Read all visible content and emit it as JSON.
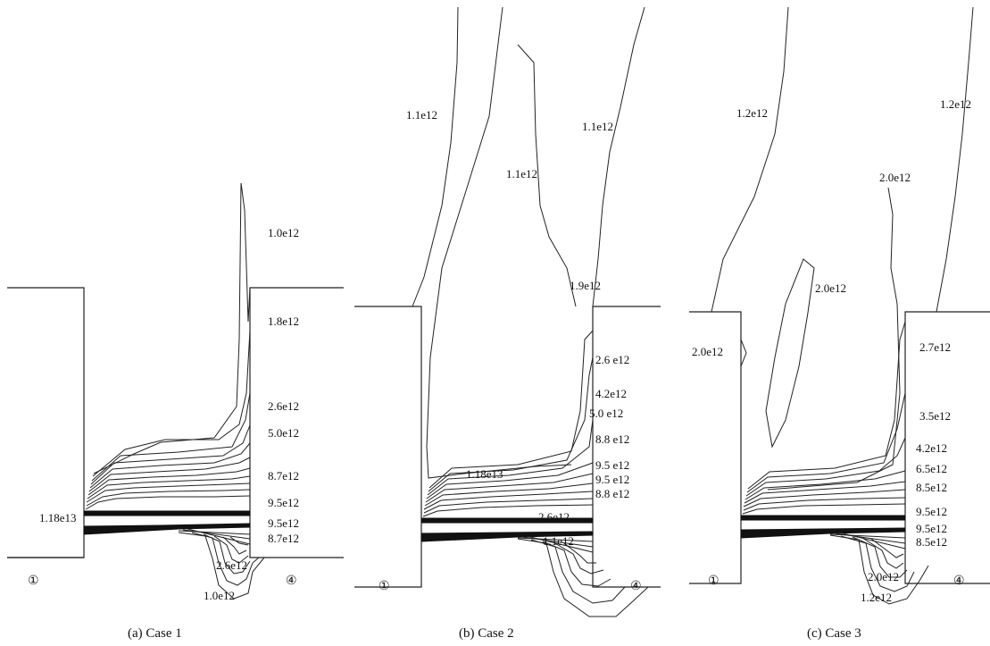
{
  "panels": [
    {
      "caption": "(a) Case 1",
      "marker_left": "①",
      "marker_right": "④",
      "labels": [
        "1.0e12",
        "1.8e12",
        "2.6e12",
        "5.0e12",
        "8.7e12",
        "9.5e12",
        "1.18e13",
        "9.5e12",
        "8.7e12",
        "2.6e12",
        "1.0e12"
      ]
    },
    {
      "caption": "(b) Case 2",
      "marker_left": "①",
      "marker_right": "④",
      "labels": [
        "1.1e12",
        "1.1e12",
        "1.1e12",
        "1.9e12",
        "2.6 e12",
        "4.2e12",
        "5.0 e12",
        "8.8 e12",
        "1.18e13",
        "9.5 e12",
        "9.5 e12",
        "8.8 e12",
        "2.6e12",
        "1.1e12"
      ]
    },
    {
      "caption": "(c) Case 3",
      "marker_left": "①",
      "marker_right": "④",
      "labels": [
        "1.2e12",
        "1.2e12",
        "2.0e12",
        "2.0e12",
        "2.0e12",
        "2.7e12",
        "3.5e12",
        "4.2e12",
        "6.5e12",
        "8.5e12",
        "9.5e12",
        "9.5e12",
        "8.5e12",
        "2.0e12",
        "1.2e12"
      ]
    }
  ]
}
